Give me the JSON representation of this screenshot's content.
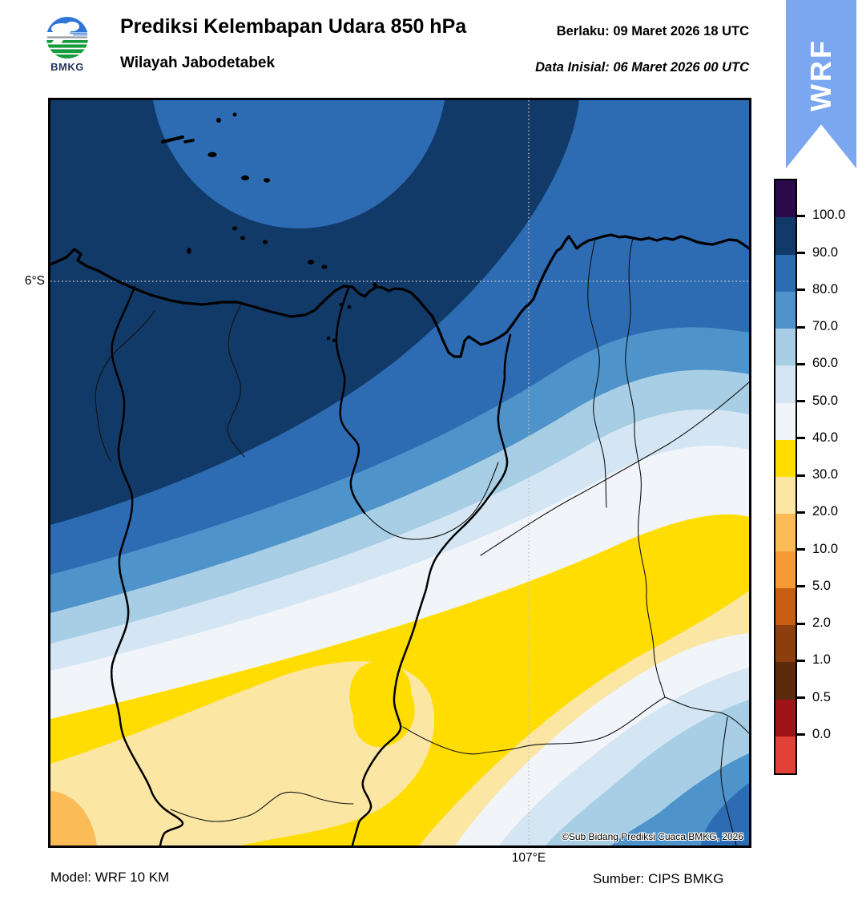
{
  "header": {
    "logo_text": "BMKG",
    "title": "Prediksi Kelembapan Udara 850 hPa",
    "subtitle": "Wilayah Jabodetabek",
    "valid_line": "Berlaku:  09 Maret 2026 18 UTC",
    "init_line": "Data Inisial:  06 Maret 2026 00 UTC",
    "ribbon_label": "WRF",
    "ribbon_color": "#7aa7f0"
  },
  "map": {
    "lat_tick_label": "6°S",
    "lon_tick_label": "107°E",
    "copyright": "©Sub Bidang Prediksi Cuaca BMKG, 2026"
  },
  "colorbar": {
    "tick_labels": [
      "100.0",
      "90.0",
      "80.0",
      "70.0",
      "60.0",
      "50.0",
      "40.0",
      "30.0",
      "20.0",
      "10.0",
      "5.0",
      "2.0",
      "1.0",
      "0.5",
      "0.0"
    ],
    "segment_colors": [
      "#2c0b4a",
      "#123a68",
      "#2d6cb3",
      "#4e93c9",
      "#a7cee4",
      "#d4e6f3",
      "#f1f4f8",
      "#ffdd00",
      "#fbe6a4",
      "#fbbc58",
      "#f79a36",
      "#c85e12",
      "#8d3e0f",
      "#5c2b0c",
      "#9e1418",
      "#e24138"
    ]
  },
  "footer": {
    "model_label": "Model: WRF 10 KM",
    "source_label": "Sumber: CIPS BMKG"
  }
}
